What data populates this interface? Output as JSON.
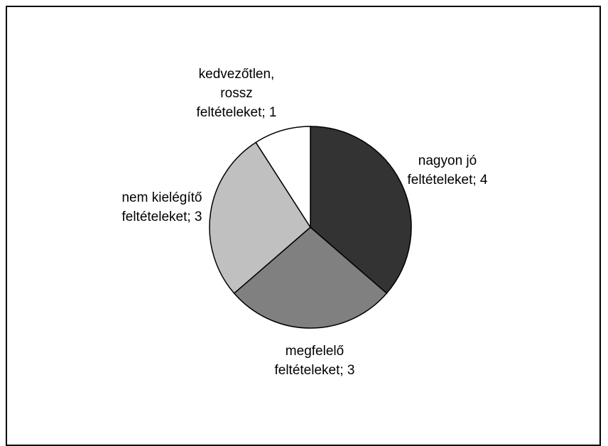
{
  "chart_data": {
    "type": "pie",
    "title": "",
    "slices": [
      {
        "label_lines": [
          "nagyon jó",
          "feltételeket; 4"
        ],
        "category": "nagyon jó feltételeket",
        "value": 4,
        "color": "#333333"
      },
      {
        "label_lines": [
          "megfelelő",
          "feltételeket; 3"
        ],
        "category": "megfelelő feltételeket",
        "value": 3,
        "color": "#808080"
      },
      {
        "label_lines": [
          "nem kielégítő",
          "feltételeket; 3"
        ],
        "category": "nem kielégítő feltételeket",
        "value": 3,
        "color": "#c0c0c0"
      },
      {
        "label_lines": [
          "kedvezőtlen,",
          "rossz",
          "feltételeket; 1"
        ],
        "category": "kedvezőtlen, rossz feltételeket",
        "value": 1,
        "color": "#ffffff"
      }
    ],
    "start": "top",
    "direction": "clockwise",
    "legend": "none"
  }
}
